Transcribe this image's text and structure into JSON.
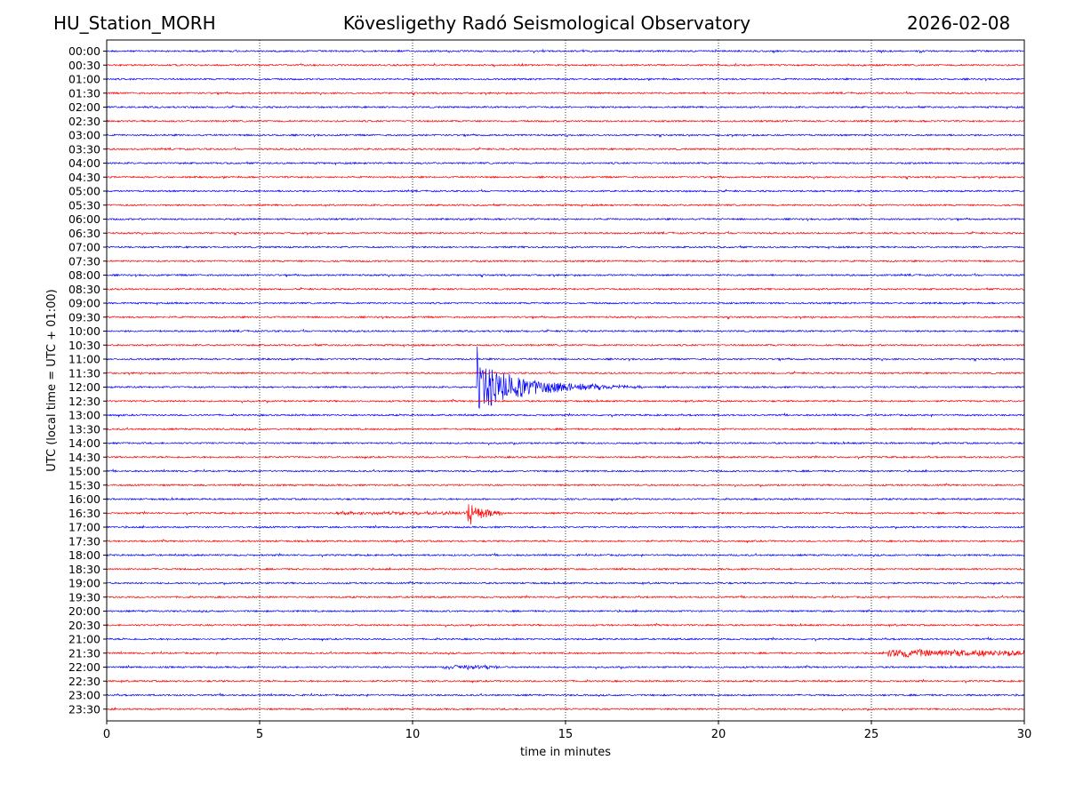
{
  "header": {
    "station": "HU_Station_MORH",
    "title": "Kövesligethy Radó Seismological Observatory",
    "date": "2026-02-08"
  },
  "chart_data": {
    "type": "line",
    "title": "Kövesligethy Radó Seismological Observatory",
    "xlabel": "time in minutes",
    "ylabel": "UTC (local time = UTC + 01:00)",
    "xlim": [
      0,
      30
    ],
    "x_ticks": [
      0,
      5,
      10,
      15,
      20,
      25,
      30
    ],
    "x_grid": "dotted vertical lines at each x tick",
    "row_labels": [
      "00:00",
      "00:30",
      "01:00",
      "01:30",
      "02:00",
      "02:30",
      "03:00",
      "03:30",
      "04:00",
      "04:30",
      "05:00",
      "05:30",
      "06:00",
      "06:30",
      "07:00",
      "07:30",
      "08:00",
      "08:30",
      "09:00",
      "09:30",
      "10:00",
      "10:30",
      "11:00",
      "11:30",
      "12:00",
      "12:30",
      "13:00",
      "13:30",
      "14:00",
      "14:30",
      "15:00",
      "15:30",
      "16:00",
      "16:30",
      "17:00",
      "17:30",
      "18:00",
      "18:30",
      "19:00",
      "19:30",
      "20:00",
      "20:30",
      "21:00",
      "21:30",
      "22:00",
      "22:30",
      "23:00",
      "23:30"
    ],
    "row_colors": [
      "#0000ff",
      "#ff0000"
    ],
    "background_noise": "low-amplitude noise on every trace",
    "events": [
      {
        "row": "12:00",
        "onset_min": 12.1,
        "duration_min": 5.5,
        "peak_amplitude_rows": 3.8,
        "note": "strong local earthquake, large spike near 12.1 min, decaying coda to ~17.5 min"
      },
      {
        "row": "16:30",
        "onset_min": 11.9,
        "duration_min": 1.5,
        "peak_amplitude_rows": 0.8,
        "note": "small event with precursor noise from ~7.5 min"
      },
      {
        "row": "21:30",
        "onset_min": 25.5,
        "duration_min": 4.5,
        "peak_amplitude_rows": 0.3,
        "note": "minor burst"
      },
      {
        "row": "22:00",
        "onset_min": 11.0,
        "duration_min": 1.8,
        "peak_amplitude_rows": 0.15,
        "note": "weak signal"
      }
    ]
  }
}
